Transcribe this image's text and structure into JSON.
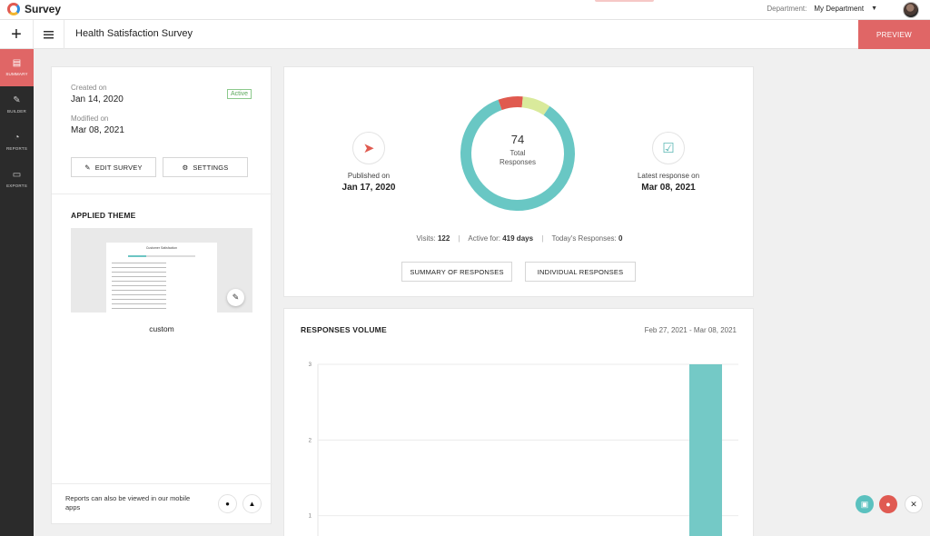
{
  "app": {
    "name": "Survey"
  },
  "header": {
    "department_label": "Department:",
    "department_value": "My Department",
    "survey_title": "Health Satisfaction Survey",
    "preview_label": "PREVIEW"
  },
  "sidebar": {
    "items": [
      {
        "label": "SUMMARY",
        "icon": "document-icon",
        "active": true
      },
      {
        "label": "BUILDER",
        "icon": "pencil-icon",
        "active": false
      },
      {
        "label": "REPORTS",
        "icon": "pie-chart-icon",
        "active": false
      },
      {
        "label": "EXPORTS",
        "icon": "folder-icon",
        "active": false
      }
    ]
  },
  "survey_info": {
    "created_label": "Created on",
    "created_value": "Jan 14, 2020",
    "modified_label": "Modified on",
    "modified_value": "Mar 08, 2021",
    "status": "Active",
    "edit_label": "EDIT SURVEY",
    "settings_label": "SETTINGS"
  },
  "theme": {
    "section_title": "APPLIED THEME",
    "thumbnail_title": "Customer Satisfaction",
    "name": "custom"
  },
  "mobile": {
    "note": "Reports can also be viewed in our mobile apps"
  },
  "summary": {
    "published_label": "Published on",
    "published_value": "Jan 17, 2020",
    "total_responses": "74",
    "total_caption_1": "Total",
    "total_caption_2": "Responses",
    "latest_label": "Latest response on",
    "latest_value": "Mar 08, 2021",
    "visits_label": "Visits:",
    "visits_value": "122",
    "active_label": "Active for:",
    "active_value": "419 days",
    "today_label": "Today's Responses:",
    "today_value": "0",
    "summary_btn": "SUMMARY OF RESPONSES",
    "individual_btn": "INDIVIDUAL RESPONSES",
    "donut_segments": [
      {
        "fraction": 0.07,
        "color": "#e05a4f"
      },
      {
        "fraction": 0.08,
        "color": "#d9ea9b"
      },
      {
        "fraction": 0.85,
        "color": "#69c7c4"
      }
    ]
  },
  "volume": {
    "title": "RESPONSES VOLUME",
    "date_range": "Feb 27, 2021 - Mar 08, 2021"
  },
  "colors": {
    "accent": "#e06666",
    "teal": "#69c7c4",
    "sidebar": "#2b2b2b"
  },
  "chart_data": {
    "type": "bar",
    "title": "RESPONSES VOLUME",
    "yticks": [
      1,
      2,
      3
    ],
    "ylim": [
      0,
      3
    ],
    "series": [
      {
        "values": [
          3
        ]
      }
    ],
    "grid": true,
    "color": "#74c9c6"
  }
}
